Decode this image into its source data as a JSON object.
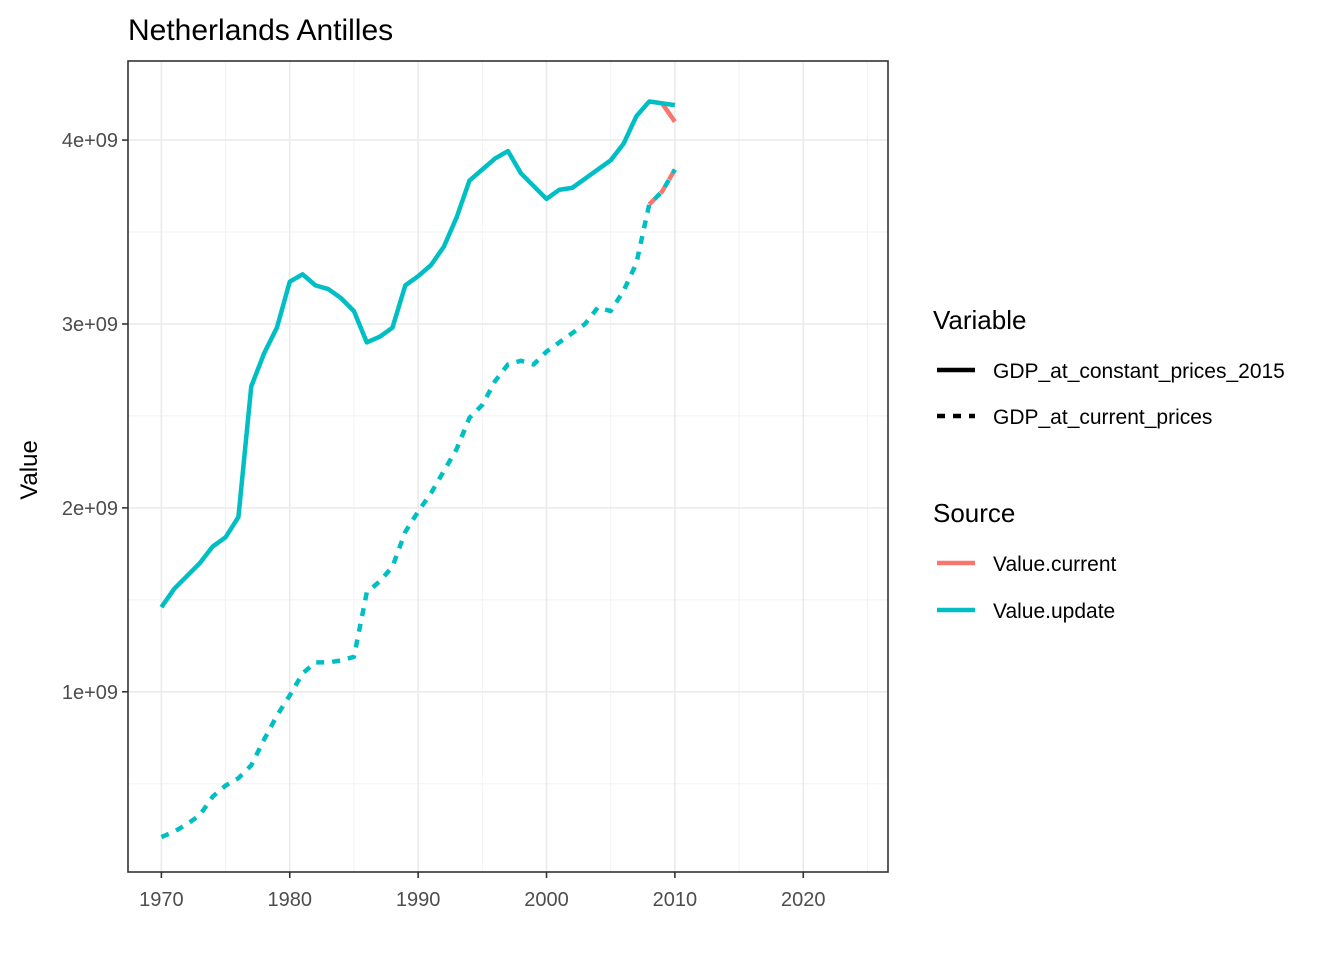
{
  "chart_data": {
    "type": "line",
    "title": "Netherlands Antilles",
    "xlabel": "",
    "ylabel": "Value",
    "xlim": [
      1967.4,
      2026.6
    ],
    "ylim": [
      20000000,
      4430000000
    ],
    "x_ticks": [
      1970,
      1980,
      1990,
      2000,
      2010,
      2020
    ],
    "x_tick_labels": [
      "1970",
      "1980",
      "1990",
      "2000",
      "2010",
      "2020"
    ],
    "y_ticks": [
      1000000000,
      2000000000,
      3000000000,
      4000000000
    ],
    "y_tick_labels": [
      "1e+09",
      "2e+09",
      "3e+09",
      "4e+09"
    ],
    "grid": true,
    "legend_position": "right",
    "legends": [
      {
        "title": "Variable",
        "entries": [
          {
            "label": "GDP_at_constant_prices_2015",
            "linetype": "solid"
          },
          {
            "label": "GDP_at_current_prices",
            "linetype": "dashed"
          }
        ]
      },
      {
        "title": "Source",
        "entries": [
          {
            "label": "Value.current",
            "color": "#F8766D"
          },
          {
            "label": "Value.update",
            "color": "#00BFC4"
          }
        ]
      }
    ],
    "series": [
      {
        "variable": "GDP_at_constant_prices_2015",
        "source": "Value.current",
        "linetype": "solid",
        "color": "#F8766D",
        "x": [
          2008,
          2009,
          2010
        ],
        "y": [
          4210000000,
          4200000000,
          4100000000
        ]
      },
      {
        "variable": "GDP_at_current_prices",
        "source": "Value.current",
        "linetype": "dashed",
        "color": "#F8766D",
        "x": [
          2008,
          2009,
          2010
        ],
        "y": [
          3650000000,
          3720000000,
          3840000000
        ]
      },
      {
        "variable": "GDP_at_constant_prices_2015",
        "source": "Value.update",
        "linetype": "solid",
        "color": "#00BFC4",
        "x": [
          1970,
          1971,
          1972,
          1973,
          1974,
          1975,
          1976,
          1977,
          1978,
          1979,
          1980,
          1981,
          1982,
          1983,
          1984,
          1985,
          1986,
          1987,
          1988,
          1989,
          1990,
          1991,
          1992,
          1993,
          1994,
          1995,
          1996,
          1997,
          1998,
          1999,
          2000,
          2001,
          2002,
          2003,
          2004,
          2005,
          2006,
          2007,
          2008,
          2009,
          2010
        ],
        "y": [
          1460000000,
          1560000000,
          1630000000,
          1700000000,
          1790000000,
          1840000000,
          1950000000,
          2660000000,
          2840000000,
          2980000000,
          3230000000,
          3270000000,
          3210000000,
          3190000000,
          3140000000,
          3070000000,
          2900000000,
          2930000000,
          2980000000,
          3210000000,
          3260000000,
          3320000000,
          3420000000,
          3580000000,
          3780000000,
          3840000000,
          3900000000,
          3940000000,
          3820000000,
          3750000000,
          3680000000,
          3730000000,
          3740000000,
          3790000000,
          3840000000,
          3890000000,
          3980000000,
          4130000000,
          4210000000,
          4200000000,
          4190000000
        ]
      },
      {
        "variable": "GDP_at_current_prices",
        "source": "Value.update",
        "linetype": "dashed",
        "color": "#00BFC4",
        "x": [
          1970,
          1971,
          1972,
          1973,
          1974,
          1975,
          1976,
          1977,
          1978,
          1979,
          1980,
          1981,
          1982,
          1983,
          1984,
          1985,
          1986,
          1987,
          1988,
          1989,
          1990,
          1991,
          1992,
          1993,
          1994,
          1995,
          1996,
          1997,
          1998,
          1999,
          2000,
          2001,
          2002,
          2003,
          2004,
          2005,
          2006,
          2007,
          2008,
          2009,
          2010
        ],
        "y": [
          210000000,
          240000000,
          280000000,
          330000000,
          430000000,
          490000000,
          530000000,
          600000000,
          740000000,
          870000000,
          980000000,
          1100000000,
          1160000000,
          1160000000,
          1170000000,
          1190000000,
          1540000000,
          1600000000,
          1680000000,
          1870000000,
          1980000000,
          2080000000,
          2200000000,
          2320000000,
          2490000000,
          2560000000,
          2690000000,
          2780000000,
          2800000000,
          2780000000,
          2850000000,
          2900000000,
          2950000000,
          3000000000,
          3090000000,
          3070000000,
          3180000000,
          3330000000,
          3650000000,
          3720000000,
          3840000000
        ]
      }
    ]
  }
}
